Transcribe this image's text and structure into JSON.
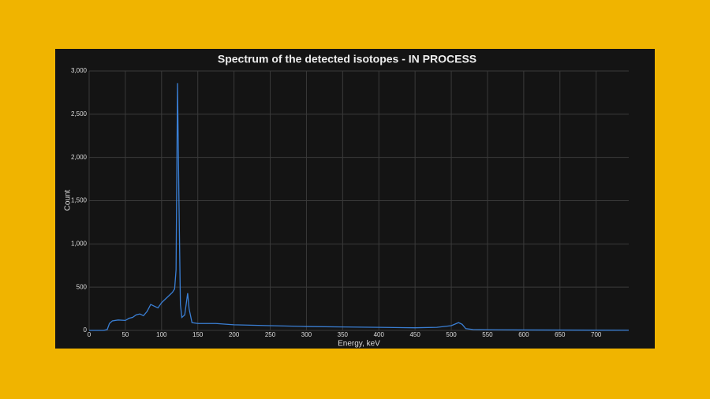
{
  "chart_data": {
    "type": "line",
    "title": "Spectrum of the detected isotopes - IN PROCESS",
    "x_label": "Energy, keV",
    "y_label": "Count",
    "x": [
      0,
      20,
      25,
      28,
      32,
      40,
      50,
      55,
      60,
      65,
      70,
      75,
      80,
      85,
      90,
      95,
      100,
      105,
      110,
      115,
      118,
      120,
      122,
      124,
      126,
      128,
      132,
      136,
      138,
      142,
      150,
      175,
      200,
      250,
      300,
      350,
      400,
      450,
      480,
      500,
      510,
      515,
      520,
      530,
      550,
      600,
      650,
      700,
      745
    ],
    "values": [
      0,
      0,
      10,
      80,
      110,
      120,
      115,
      140,
      150,
      180,
      190,
      170,
      220,
      300,
      280,
      260,
      320,
      360,
      400,
      440,
      480,
      700,
      2860,
      1500,
      300,
      150,
      180,
      430,
      250,
      90,
      80,
      80,
      65,
      55,
      45,
      40,
      35,
      30,
      35,
      55,
      90,
      70,
      20,
      10,
      8,
      5,
      4,
      3,
      2
    ],
    "color": "#3a7fd5",
    "xlim": [
      0,
      745
    ],
    "ylim": [
      0,
      3000
    ],
    "xticks": [
      0,
      50,
      100,
      150,
      200,
      250,
      300,
      350,
      400,
      450,
      500,
      550,
      600,
      650,
      700
    ],
    "yticks": [
      0,
      500,
      {
        "value": 1000,
        "label": "1,000"
      },
      {
        "value": 1500,
        "label": "1,500"
      },
      {
        "value": 2000,
        "label": "2,000"
      },
      {
        "value": 2500,
        "label": "2,500"
      },
      {
        "value": 3000,
        "label": "3,000"
      }
    ],
    "grid": true
  }
}
